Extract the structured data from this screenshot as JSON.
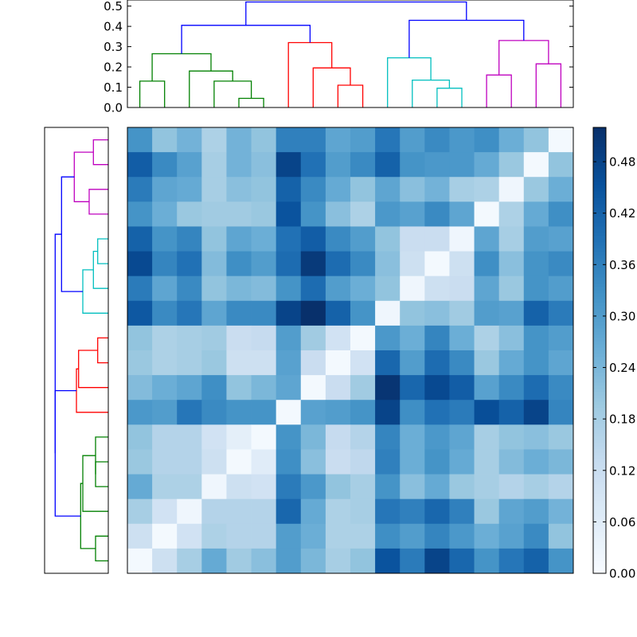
{
  "chart_data": [
    {
      "type": "dendrogram",
      "orientation": "top",
      "ylim": [
        0,
        0.53
      ],
      "yticks": [
        "0.0",
        "0.1",
        "0.2",
        "0.3",
        "0.4",
        "0.5"
      ],
      "leaf_count": 18,
      "merges": [
        {
          "a": "L0",
          "b": "L1",
          "h": 0.13,
          "color": "#008000"
        },
        {
          "a": "L4",
          "b": "L5",
          "h": 0.045,
          "color": "#008000"
        },
        {
          "a": "L3",
          "b": "M1",
          "h": 0.13,
          "color": "#008000"
        },
        {
          "a": "L2",
          "b": "M2",
          "h": 0.18,
          "color": "#008000"
        },
        {
          "a": "M0",
          "b": "M3",
          "h": 0.265,
          "color": "#008000"
        },
        {
          "a": "L8",
          "b": "L9",
          "h": 0.11,
          "color": "#ff0000"
        },
        {
          "a": "L7",
          "b": "M5",
          "h": 0.195,
          "color": "#ff0000"
        },
        {
          "a": "L6",
          "b": "M6",
          "h": 0.32,
          "color": "#ff0000"
        },
        {
          "a": "M4",
          "b": "M7",
          "h": 0.405,
          "color": "#0000ff"
        },
        {
          "a": "L12",
          "b": "L13",
          "h": 0.095,
          "color": "#00bfbf"
        },
        {
          "a": "L11",
          "b": "M9",
          "h": 0.135,
          "color": "#00bfbf"
        },
        {
          "a": "L10",
          "b": "M10",
          "h": 0.245,
          "color": "#00bfbf"
        },
        {
          "a": "L14",
          "b": "L15",
          "h": 0.16,
          "color": "#bf00bf"
        },
        {
          "a": "L16",
          "b": "L17",
          "h": 0.215,
          "color": "#bf00bf"
        },
        {
          "a": "M12",
          "b": "M13",
          "h": 0.33,
          "color": "#bf00bf"
        },
        {
          "a": "M11",
          "b": "M14",
          "h": 0.43,
          "color": "#0000ff"
        },
        {
          "a": "M8",
          "b": "M15",
          "h": 0.52,
          "color": "#0000ff"
        }
      ]
    },
    {
      "type": "dendrogram",
      "orientation": "left",
      "leaf_count": 18,
      "leaf_order": "bottom-to-top",
      "merges": [
        {
          "a": "L0",
          "b": "L1",
          "h": 0.06,
          "color": "#008000"
        },
        {
          "a": "L3",
          "b": "L4",
          "h": 0.06,
          "color": "#008000"
        },
        {
          "a": "L5",
          "b": "M1",
          "h": 0.06,
          "color": "#008000"
        },
        {
          "a": "L2",
          "b": "M2",
          "h": 0.12,
          "color": "#008000"
        },
        {
          "a": "M0",
          "b": "M3",
          "h": 0.13,
          "color": "#008000"
        },
        {
          "a": "L8",
          "b": "L9",
          "h": 0.05,
          "color": "#ff0000"
        },
        {
          "a": "L7",
          "b": "M5",
          "h": 0.14,
          "color": "#ff0000"
        },
        {
          "a": "L6",
          "b": "M6",
          "h": 0.15,
          "color": "#ff0000"
        },
        {
          "a": "M4",
          "b": "M7",
          "h": 0.25,
          "color": "#0000ff"
        },
        {
          "a": "L12",
          "b": "L13",
          "h": 0.05,
          "color": "#00bfbf"
        },
        {
          "a": "L11",
          "b": "M9",
          "h": 0.07,
          "color": "#00bfbf"
        },
        {
          "a": "L10",
          "b": "M10",
          "h": 0.12,
          "color": "#00bfbf"
        },
        {
          "a": "L14",
          "b": "L15",
          "h": 0.09,
          "color": "#bf00bf"
        },
        {
          "a": "L16",
          "b": "L17",
          "h": 0.07,
          "color": "#bf00bf"
        },
        {
          "a": "M12",
          "b": "M13",
          "h": 0.16,
          "color": "#bf00bf"
        },
        {
          "a": "M11",
          "b": "M14",
          "h": 0.22,
          "color": "#0000ff"
        },
        {
          "a": "M8",
          "b": "M15",
          "h": 0.25,
          "color": "#0000ff"
        }
      ]
    },
    {
      "type": "heatmap",
      "rows": 18,
      "cols": 18,
      "row_order": "top-to-bottom",
      "vmin": 0,
      "vmax": 0.52,
      "colormap": "Blues",
      "values": [
        [
          0.32,
          0.21,
          0.25,
          0.17,
          0.25,
          0.21,
          0.36,
          0.36,
          0.28,
          0.3,
          0.38,
          0.3,
          0.34,
          0.31,
          0.33,
          0.26,
          0.21,
          0.01
        ],
        [
          0.43,
          0.34,
          0.29,
          0.18,
          0.25,
          0.22,
          0.48,
          0.39,
          0.3,
          0.34,
          0.42,
          0.32,
          0.31,
          0.31,
          0.27,
          0.2,
          0.01,
          0.21
        ],
        [
          0.37,
          0.28,
          0.27,
          0.18,
          0.22,
          0.21,
          0.42,
          0.34,
          0.27,
          0.21,
          0.28,
          0.22,
          0.25,
          0.18,
          0.17,
          0.02,
          0.2,
          0.26
        ],
        [
          0.32,
          0.26,
          0.2,
          0.19,
          0.19,
          0.2,
          0.45,
          0.32,
          0.22,
          0.17,
          0.31,
          0.29,
          0.34,
          0.28,
          0.01,
          0.17,
          0.27,
          0.33
        ],
        [
          0.42,
          0.32,
          0.35,
          0.21,
          0.28,
          0.26,
          0.39,
          0.43,
          0.34,
          0.3,
          0.21,
          0.12,
          0.12,
          0.02,
          0.28,
          0.18,
          0.3,
          0.29
        ],
        [
          0.47,
          0.35,
          0.39,
          0.23,
          0.33,
          0.3,
          0.4,
          0.5,
          0.4,
          0.34,
          0.22,
          0.11,
          0.01,
          0.11,
          0.33,
          0.22,
          0.32,
          0.34
        ],
        [
          0.37,
          0.28,
          0.34,
          0.21,
          0.24,
          0.23,
          0.32,
          0.4,
          0.3,
          0.26,
          0.21,
          0.02,
          0.11,
          0.12,
          0.28,
          0.2,
          0.32,
          0.3
        ],
        [
          0.44,
          0.34,
          0.38,
          0.28,
          0.34,
          0.34,
          0.48,
          0.52,
          0.42,
          0.32,
          0.02,
          0.21,
          0.22,
          0.19,
          0.3,
          0.29,
          0.42,
          0.37
        ],
        [
          0.21,
          0.17,
          0.18,
          0.19,
          0.12,
          0.13,
          0.3,
          0.19,
          0.1,
          0.01,
          0.31,
          0.26,
          0.35,
          0.26,
          0.17,
          0.22,
          0.32,
          0.3
        ],
        [
          0.2,
          0.17,
          0.18,
          0.2,
          0.11,
          0.11,
          0.29,
          0.12,
          0.01,
          0.1,
          0.41,
          0.3,
          0.4,
          0.34,
          0.2,
          0.27,
          0.32,
          0.28
        ],
        [
          0.23,
          0.26,
          0.28,
          0.33,
          0.21,
          0.24,
          0.28,
          0.01,
          0.12,
          0.19,
          0.51,
          0.41,
          0.47,
          0.43,
          0.29,
          0.34,
          0.4,
          0.34
        ],
        [
          0.31,
          0.3,
          0.38,
          0.34,
          0.32,
          0.32,
          0.01,
          0.29,
          0.3,
          0.32,
          0.48,
          0.33,
          0.39,
          0.37,
          0.46,
          0.42,
          0.48,
          0.35
        ],
        [
          0.21,
          0.16,
          0.16,
          0.1,
          0.05,
          0.01,
          0.32,
          0.24,
          0.13,
          0.16,
          0.35,
          0.26,
          0.31,
          0.28,
          0.18,
          0.21,
          0.22,
          0.2
        ],
        [
          0.2,
          0.16,
          0.16,
          0.11,
          0.01,
          0.06,
          0.33,
          0.22,
          0.12,
          0.14,
          0.36,
          0.26,
          0.32,
          0.27,
          0.18,
          0.23,
          0.26,
          0.24
        ],
        [
          0.27,
          0.17,
          0.17,
          0.02,
          0.11,
          0.1,
          0.37,
          0.31,
          0.21,
          0.18,
          0.32,
          0.22,
          0.27,
          0.2,
          0.18,
          0.16,
          0.18,
          0.16
        ],
        [
          0.18,
          0.1,
          0.02,
          0.16,
          0.16,
          0.16,
          0.41,
          0.27,
          0.17,
          0.18,
          0.38,
          0.36,
          0.41,
          0.36,
          0.2,
          0.28,
          0.3,
          0.25
        ],
        [
          0.11,
          0.01,
          0.1,
          0.17,
          0.16,
          0.16,
          0.3,
          0.26,
          0.17,
          0.17,
          0.33,
          0.3,
          0.35,
          0.31,
          0.26,
          0.29,
          0.34,
          0.21
        ],
        [
          0.01,
          0.11,
          0.18,
          0.27,
          0.19,
          0.22,
          0.3,
          0.24,
          0.18,
          0.21,
          0.45,
          0.37,
          0.48,
          0.41,
          0.32,
          0.38,
          0.42,
          0.32
        ]
      ]
    },
    {
      "type": "colorbar",
      "vmin": 0,
      "vmax": 0.52,
      "ticks": [
        "0.00",
        "0.06",
        "0.12",
        "0.18",
        "0.24",
        "0.30",
        "0.36",
        "0.42",
        "0.48"
      ],
      "colormap": "Blues"
    }
  ]
}
